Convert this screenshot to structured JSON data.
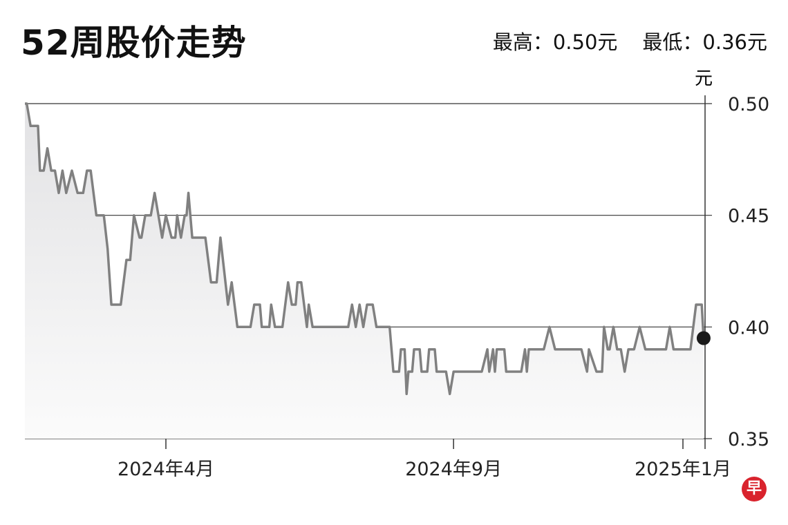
{
  "header": {
    "title": "52周股价走势",
    "high_label": "最高：0.50元",
    "low_label": "最低：0.36元"
  },
  "logo": {
    "text": "早",
    "color": "#d9232d"
  },
  "chart_data": {
    "type": "area",
    "title": "52周股价走势",
    "ylabel": "元",
    "ylim": [
      0.35,
      0.5
    ],
    "yticks": [
      0.5,
      0.45,
      0.4,
      0.35
    ],
    "ytick_labels": [
      "0.50",
      "0.45",
      "0.40",
      "0.35"
    ],
    "xticks": [
      "2024-04-01",
      "2024-09-01",
      "2025-01-01"
    ],
    "xtick_labels": [
      "2024年4月",
      "2024年9月",
      "2025年1月"
    ],
    "y_axis_side": "right",
    "grid": true,
    "line_color": "#808080",
    "last_point_marker": true,
    "points": [
      [
        "2024-01-17",
        0.5
      ],
      [
        "2024-01-18",
        0.5
      ],
      [
        "2024-01-20",
        0.49
      ],
      [
        "2024-01-24",
        0.49
      ],
      [
        "2024-01-25",
        0.47
      ],
      [
        "2024-01-27",
        0.47
      ],
      [
        "2024-01-29",
        0.48
      ],
      [
        "2024-01-31",
        0.47
      ],
      [
        "2024-02-02",
        0.47
      ],
      [
        "2024-02-04",
        0.46
      ],
      [
        "2024-02-06",
        0.47
      ],
      [
        "2024-02-08",
        0.46
      ],
      [
        "2024-02-11",
        0.47
      ],
      [
        "2024-02-14",
        0.46
      ],
      [
        "2024-02-17",
        0.46
      ],
      [
        "2024-02-19",
        0.47
      ],
      [
        "2024-02-21",
        0.47
      ],
      [
        "2024-02-24",
        0.45
      ],
      [
        "2024-02-28",
        0.45
      ],
      [
        "2024-03-01",
        0.435
      ],
      [
        "2024-03-03",
        0.41
      ],
      [
        "2024-03-08",
        0.41
      ],
      [
        "2024-03-11",
        0.43
      ],
      [
        "2024-03-13",
        0.43
      ],
      [
        "2024-03-15",
        0.45
      ],
      [
        "2024-03-18",
        0.44
      ],
      [
        "2024-03-19",
        0.44
      ],
      [
        "2024-03-21",
        0.45
      ],
      [
        "2024-03-24",
        0.45
      ],
      [
        "2024-03-26",
        0.46
      ],
      [
        "2024-03-30",
        0.44
      ],
      [
        "2024-04-01",
        0.45
      ],
      [
        "2024-04-04",
        0.44
      ],
      [
        "2024-04-06",
        0.44
      ],
      [
        "2024-04-07",
        0.45
      ],
      [
        "2024-04-09",
        0.44
      ],
      [
        "2024-04-11",
        0.45
      ],
      [
        "2024-04-12",
        0.45
      ],
      [
        "2024-04-13",
        0.46
      ],
      [
        "2024-04-15",
        0.44
      ],
      [
        "2024-04-22",
        0.44
      ],
      [
        "2024-04-25",
        0.42
      ],
      [
        "2024-04-28",
        0.42
      ],
      [
        "2024-04-30",
        0.44
      ],
      [
        "2024-05-04",
        0.41
      ],
      [
        "2024-05-06",
        0.42
      ],
      [
        "2024-05-09",
        0.4
      ],
      [
        "2024-05-16",
        0.4
      ],
      [
        "2024-05-18",
        0.41
      ],
      [
        "2024-05-21",
        0.41
      ],
      [
        "2024-05-22",
        0.4
      ],
      [
        "2024-05-26",
        0.4
      ],
      [
        "2024-05-27",
        0.41
      ],
      [
        "2024-05-29",
        0.4
      ],
      [
        "2024-06-02",
        0.4
      ],
      [
        "2024-06-05",
        0.42
      ],
      [
        "2024-06-07",
        0.41
      ],
      [
        "2024-06-09",
        0.41
      ],
      [
        "2024-06-10",
        0.42
      ],
      [
        "2024-06-12",
        0.42
      ],
      [
        "2024-06-15",
        0.4
      ],
      [
        "2024-06-16",
        0.41
      ],
      [
        "2024-06-18",
        0.4
      ],
      [
        "2024-07-07",
        0.4
      ],
      [
        "2024-07-09",
        0.41
      ],
      [
        "2024-07-11",
        0.4
      ],
      [
        "2024-07-13",
        0.41
      ],
      [
        "2024-07-15",
        0.4
      ],
      [
        "2024-07-17",
        0.41
      ],
      [
        "2024-07-20",
        0.41
      ],
      [
        "2024-07-22",
        0.4
      ],
      [
        "2024-07-29",
        0.4
      ],
      [
        "2024-07-31",
        0.38
      ],
      [
        "2024-08-03",
        0.38
      ],
      [
        "2024-08-04",
        0.39
      ],
      [
        "2024-08-06",
        0.39
      ],
      [
        "2024-08-07",
        0.37
      ],
      [
        "2024-08-08",
        0.38
      ],
      [
        "2024-08-10",
        0.38
      ],
      [
        "2024-08-11",
        0.39
      ],
      [
        "2024-08-14",
        0.39
      ],
      [
        "2024-08-15",
        0.38
      ],
      [
        "2024-08-18",
        0.38
      ],
      [
        "2024-08-19",
        0.39
      ],
      [
        "2024-08-22",
        0.39
      ],
      [
        "2024-08-23",
        0.38
      ],
      [
        "2024-08-28",
        0.38
      ],
      [
        "2024-08-30",
        0.37
      ],
      [
        "2024-09-01",
        0.38
      ],
      [
        "2024-09-16",
        0.38
      ],
      [
        "2024-09-19",
        0.39
      ],
      [
        "2024-09-20",
        0.38
      ],
      [
        "2024-09-22",
        0.39
      ],
      [
        "2024-09-23",
        0.38
      ],
      [
        "2024-09-24",
        0.39
      ],
      [
        "2024-09-28",
        0.39
      ],
      [
        "2024-09-29",
        0.38
      ],
      [
        "2024-10-07",
        0.38
      ],
      [
        "2024-10-09",
        0.39
      ],
      [
        "2024-10-10",
        0.38
      ],
      [
        "2024-10-11",
        0.39
      ],
      [
        "2024-10-19",
        0.39
      ],
      [
        "2024-10-22",
        0.4
      ],
      [
        "2024-10-25",
        0.39
      ],
      [
        "2024-11-08",
        0.39
      ],
      [
        "2024-11-11",
        0.38
      ],
      [
        "2024-11-12",
        0.39
      ],
      [
        "2024-11-16",
        0.38
      ],
      [
        "2024-11-19",
        0.38
      ],
      [
        "2024-11-20",
        0.4
      ],
      [
        "2024-11-22",
        0.39
      ],
      [
        "2024-11-23",
        0.39
      ],
      [
        "2024-11-25",
        0.4
      ],
      [
        "2024-11-27",
        0.39
      ],
      [
        "2024-11-29",
        0.39
      ],
      [
        "2024-12-01",
        0.38
      ],
      [
        "2024-12-03",
        0.39
      ],
      [
        "2024-12-06",
        0.39
      ],
      [
        "2024-12-09",
        0.4
      ],
      [
        "2024-12-12",
        0.39
      ],
      [
        "2024-12-23",
        0.39
      ],
      [
        "2024-12-25",
        0.4
      ],
      [
        "2024-12-27",
        0.39
      ],
      [
        "2025-01-05",
        0.39
      ],
      [
        "2025-01-08",
        0.41
      ],
      [
        "2025-01-11",
        0.41
      ],
      [
        "2025-01-12",
        0.395
      ]
    ]
  }
}
